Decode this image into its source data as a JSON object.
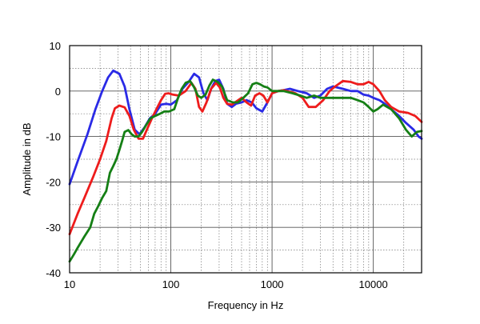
{
  "chart_data": {
    "type": "line",
    "title": "",
    "xlabel": "Frequency in Hz",
    "ylabel": "Amplitude in dB",
    "x_scale": "log",
    "xlim": [
      10,
      30000
    ],
    "ylim": [
      -40,
      10
    ],
    "x_ticks": [
      {
        "value": 10,
        "label": "10"
      },
      {
        "value": 100,
        "label": "100"
      },
      {
        "value": 1000,
        "label": "1000"
      },
      {
        "value": 10000,
        "label": "10000"
      }
    ],
    "y_ticks": [
      {
        "value": 10,
        "label": "10"
      },
      {
        "value": 0,
        "label": "0"
      },
      {
        "value": -10,
        "label": "-10"
      },
      {
        "value": -20,
        "label": "-20"
      },
      {
        "value": -30,
        "label": "-30"
      },
      {
        "value": -40,
        "label": "-40"
      }
    ],
    "grid": true,
    "legend": "none",
    "series": [
      {
        "color": "#2a2ae6",
        "points": [
          [
            10,
            -20.5
          ],
          [
            12,
            -15.5
          ],
          [
            15,
            -9.5
          ],
          [
            18,
            -4
          ],
          [
            21,
            0
          ],
          [
            24,
            3
          ],
          [
            27,
            4.5
          ],
          [
            31,
            3.8
          ],
          [
            35,
            1
          ],
          [
            39,
            -4
          ],
          [
            44,
            -8.5
          ],
          [
            49,
            -9.5
          ],
          [
            55,
            -8
          ],
          [
            62,
            -6
          ],
          [
            70,
            -5
          ],
          [
            80,
            -3
          ],
          [
            90,
            -2.8
          ],
          [
            100,
            -3
          ],
          [
            115,
            -2
          ],
          [
            130,
            0.5
          ],
          [
            150,
            2
          ],
          [
            170,
            3.8
          ],
          [
            190,
            3
          ],
          [
            210,
            -0.5
          ],
          [
            230,
            -2
          ],
          [
            250,
            0.5
          ],
          [
            275,
            2.2
          ],
          [
            300,
            2.5
          ],
          [
            330,
            0.5
          ],
          [
            360,
            -2.8
          ],
          [
            400,
            -3.5
          ],
          [
            440,
            -2.8
          ],
          [
            500,
            -2.5
          ],
          [
            560,
            -2
          ],
          [
            630,
            -2.5
          ],
          [
            700,
            -3.8
          ],
          [
            800,
            -4.5
          ],
          [
            900,
            -2.5
          ],
          [
            1000,
            -0.5
          ],
          [
            1150,
            0
          ],
          [
            1300,
            0.2
          ],
          [
            1500,
            0.5
          ],
          [
            1800,
            0
          ],
          [
            2200,
            -0.5
          ],
          [
            2600,
            -1.5
          ],
          [
            3000,
            -1
          ],
          [
            3500,
            0.5
          ],
          [
            4000,
            1
          ],
          [
            5000,
            0.5
          ],
          [
            6000,
            0
          ],
          [
            7000,
            0
          ],
          [
            8000,
            -0.8
          ],
          [
            9000,
            -1
          ],
          [
            10000,
            -1.5
          ],
          [
            11500,
            -2
          ],
          [
            13000,
            -2.8
          ],
          [
            15000,
            -4
          ],
          [
            18000,
            -5.5
          ],
          [
            21000,
            -7
          ],
          [
            25000,
            -8.5
          ],
          [
            28000,
            -10
          ],
          [
            30000,
            -10.5
          ]
        ]
      },
      {
        "color": "#ee1c1c",
        "points": [
          [
            10,
            -31.5
          ],
          [
            12,
            -27
          ],
          [
            14,
            -23.5
          ],
          [
            17,
            -19
          ],
          [
            20,
            -15
          ],
          [
            23,
            -11
          ],
          [
            26,
            -6
          ],
          [
            28,
            -3.8
          ],
          [
            31,
            -3.2
          ],
          [
            35,
            -3.6
          ],
          [
            39,
            -5.5
          ],
          [
            43,
            -8.5
          ],
          [
            48,
            -10.5
          ],
          [
            53,
            -10.5
          ],
          [
            58,
            -8.5
          ],
          [
            65,
            -6
          ],
          [
            72,
            -4
          ],
          [
            80,
            -2
          ],
          [
            88,
            -0.6
          ],
          [
            95,
            -0.5
          ],
          [
            105,
            -0.8
          ],
          [
            120,
            -1
          ],
          [
            140,
            0
          ],
          [
            160,
            1.8
          ],
          [
            175,
            0.5
          ],
          [
            190,
            -3.5
          ],
          [
            205,
            -4.5
          ],
          [
            225,
            -2.5
          ],
          [
            250,
            0.5
          ],
          [
            280,
            1.8
          ],
          [
            305,
            0.8
          ],
          [
            330,
            -1.5
          ],
          [
            360,
            -2.8
          ],
          [
            400,
            -3
          ],
          [
            450,
            -2.2
          ],
          [
            500,
            -1.5
          ],
          [
            560,
            -2.5
          ],
          [
            620,
            -3.2
          ],
          [
            680,
            -1
          ],
          [
            750,
            -0.5
          ],
          [
            820,
            -1
          ],
          [
            900,
            -2.5
          ],
          [
            1000,
            -0.5
          ],
          [
            1150,
            0
          ],
          [
            1300,
            0.2
          ],
          [
            1500,
            -0.2
          ],
          [
            1700,
            -0.5
          ],
          [
            2000,
            -1.5
          ],
          [
            2300,
            -3.5
          ],
          [
            2700,
            -3.5
          ],
          [
            3200,
            -2
          ],
          [
            3700,
            0
          ],
          [
            4200,
            1
          ],
          [
            5000,
            2.2
          ],
          [
            6000,
            2
          ],
          [
            7000,
            1.5
          ],
          [
            8000,
            1.5
          ],
          [
            9000,
            2
          ],
          [
            10000,
            1.5
          ],
          [
            11500,
            0
          ],
          [
            13000,
            -2
          ],
          [
            15000,
            -3.5
          ],
          [
            18000,
            -4.5
          ],
          [
            22000,
            -4.8
          ],
          [
            26000,
            -5.5
          ],
          [
            30000,
            -6.8
          ]
        ]
      },
      {
        "color": "#157f15",
        "points": [
          [
            10,
            -37.5
          ],
          [
            11,
            -36
          ],
          [
            12,
            -34.5
          ],
          [
            14,
            -32
          ],
          [
            16,
            -30
          ],
          [
            17.5,
            -27
          ],
          [
            19,
            -25.5
          ],
          [
            21,
            -23.5
          ],
          [
            23,
            -22
          ],
          [
            25,
            -18
          ],
          [
            27,
            -16.5
          ],
          [
            29,
            -15
          ],
          [
            31,
            -13
          ],
          [
            33,
            -11
          ],
          [
            35,
            -9
          ],
          [
            38,
            -8.6
          ],
          [
            41,
            -9.5
          ],
          [
            44,
            -10
          ],
          [
            48,
            -10
          ],
          [
            52,
            -9
          ],
          [
            57,
            -7.5
          ],
          [
            63,
            -6
          ],
          [
            70,
            -5.5
          ],
          [
            78,
            -5
          ],
          [
            86,
            -4.5
          ],
          [
            96,
            -4.5
          ],
          [
            108,
            -4
          ],
          [
            118,
            -1.5
          ],
          [
            128,
            0.5
          ],
          [
            140,
            1.8
          ],
          [
            155,
            2.2
          ],
          [
            170,
            0.8
          ],
          [
            185,
            -1
          ],
          [
            200,
            -1.5
          ],
          [
            220,
            -0.8
          ],
          [
            240,
            1.2
          ],
          [
            260,
            2.5
          ],
          [
            290,
            2
          ],
          [
            320,
            1
          ],
          [
            360,
            -2
          ],
          [
            410,
            -2.5
          ],
          [
            460,
            -2.5
          ],
          [
            520,
            -1.5
          ],
          [
            580,
            -0.5
          ],
          [
            640,
            1.5
          ],
          [
            700,
            1.8
          ],
          [
            760,
            1.5
          ],
          [
            830,
            1
          ],
          [
            900,
            0.8
          ],
          [
            1000,
            0
          ],
          [
            1150,
            0
          ],
          [
            1300,
            0
          ],
          [
            1600,
            -0.5
          ],
          [
            1900,
            -1
          ],
          [
            2200,
            -1.5
          ],
          [
            2600,
            -1
          ],
          [
            3000,
            -1.5
          ],
          [
            3500,
            -1.5
          ],
          [
            4000,
            -1.5
          ],
          [
            5000,
            -1.5
          ],
          [
            6000,
            -1.5
          ],
          [
            7000,
            -2
          ],
          [
            8000,
            -2.5
          ],
          [
            9000,
            -3.5
          ],
          [
            10000,
            -4.5
          ],
          [
            11000,
            -4
          ],
          [
            12500,
            -3
          ],
          [
            15000,
            -4
          ],
          [
            18000,
            -6
          ],
          [
            21000,
            -8.5
          ],
          [
            24000,
            -10
          ],
          [
            27000,
            -9
          ],
          [
            30000,
            -8.8
          ]
        ]
      }
    ]
  }
}
